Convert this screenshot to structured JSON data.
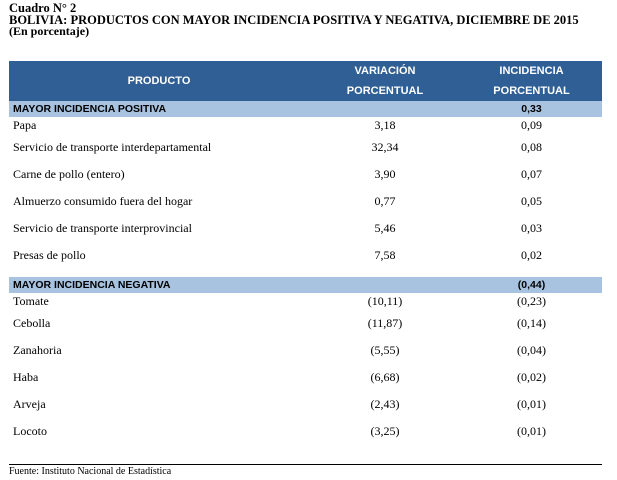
{
  "heading": {
    "number": "Cuadro N° 2",
    "title": "BOLIVIA: PRODUCTOS CON MAYOR INCIDENCIA POSITIVA Y NEGATIVA, DICIEMBRE DE 2015",
    "unit": "(En porcentaje)"
  },
  "table": {
    "headers": {
      "product": "PRODUCTO",
      "variation_line1": "VARIACIÓN",
      "variation_line2": "PORCENTUAL",
      "incidence_line1": "INCIDENCIA",
      "incidence_line2": "PORCENTUAL"
    },
    "positive": {
      "label": "MAYOR INCIDENCIA POSITIVA",
      "total": "0,33",
      "rows": [
        {
          "product": "Papa",
          "variation": "3,18",
          "incidence": "0,09"
        },
        {
          "product": "Servicio de transporte interdepartamental",
          "variation": "32,34",
          "incidence": "0,08"
        },
        {
          "product": "Carne de pollo (entero)",
          "variation": "3,90",
          "incidence": "0,07"
        },
        {
          "product": "Almuerzo consumido fuera del hogar",
          "variation": "0,77",
          "incidence": "0,05"
        },
        {
          "product": "Servicio de transporte interprovincial",
          "variation": "5,46",
          "incidence": "0,03"
        },
        {
          "product": "Presas de pollo",
          "variation": "7,58",
          "incidence": "0,02"
        }
      ]
    },
    "negative": {
      "label": "MAYOR INCIDENCIA NEGATIVA",
      "total": "(0,44)",
      "rows": [
        {
          "product": "Tomate",
          "variation": "(10,11)",
          "incidence": "(0,23)"
        },
        {
          "product": "Cebolla",
          "variation": "(11,87)",
          "incidence": "(0,14)"
        },
        {
          "product": "Zanahoria",
          "variation": "(5,55)",
          "incidence": "(0,04)"
        },
        {
          "product": "Haba",
          "variation": "(6,68)",
          "incidence": "(0,02)"
        },
        {
          "product": "Arveja",
          "variation": "(2,43)",
          "incidence": "(0,01)"
        },
        {
          "product": "Locoto",
          "variation": "(3,25)",
          "incidence": "(0,01)"
        }
      ]
    }
  },
  "source": "Fuente: Instituto Nacional de Estadística",
  "colors": {
    "header_bg": "#2f5f94",
    "section_bg": "#a8c3e0"
  }
}
